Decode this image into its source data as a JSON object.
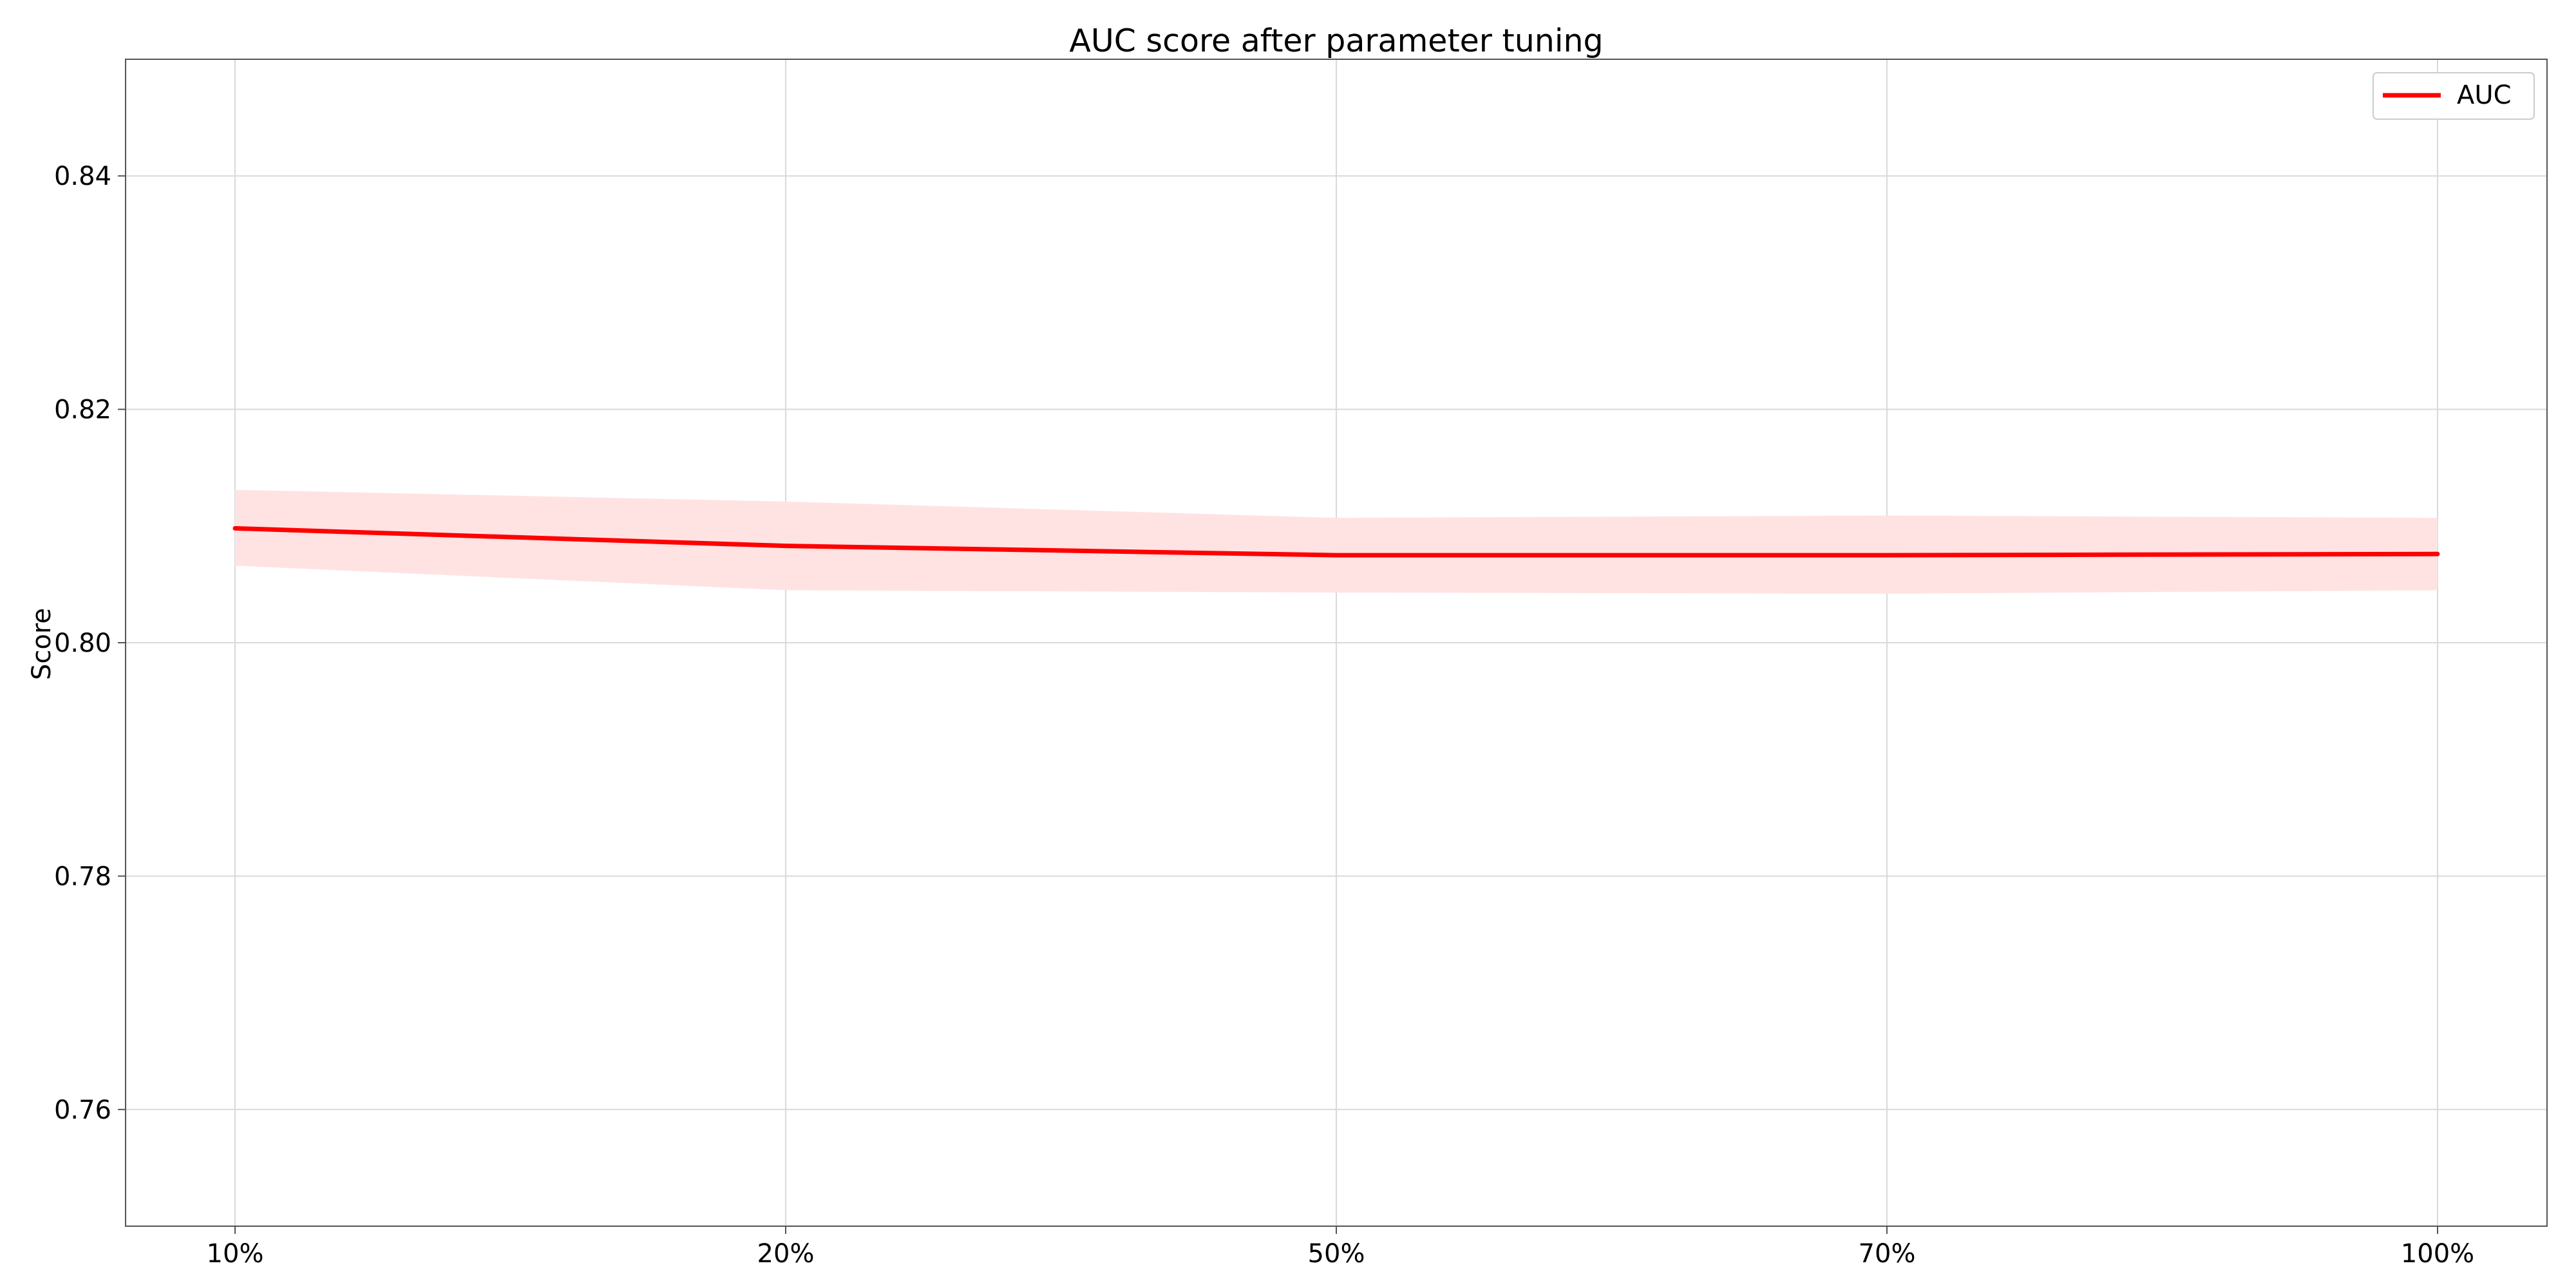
{
  "chart_data": {
    "type": "line",
    "title": "AUC score after parameter tuning",
    "xlabel": "",
    "ylabel": "Score",
    "categories": [
      "10%",
      "20%",
      "50%",
      "70%",
      "100%"
    ],
    "ylim": [
      0.75,
      0.85
    ],
    "yticks": [
      0.76,
      0.78,
      0.8,
      0.82,
      0.84
    ],
    "ytick_labels": [
      "0.76",
      "0.78",
      "0.80",
      "0.82",
      "0.84"
    ],
    "grid": true,
    "legend_position": "top-right",
    "series": [
      {
        "name": "AUC",
        "color": "#ff0000",
        "band_color": "#ffe3e3",
        "values": [
          0.8098,
          0.8083,
          0.8075,
          0.8075,
          0.8076
        ],
        "upper": [
          0.8131,
          0.8121,
          0.8107,
          0.8109,
          0.8107
        ],
        "lower": [
          0.8066,
          0.8045,
          0.8043,
          0.8042,
          0.8045
        ]
      }
    ]
  }
}
